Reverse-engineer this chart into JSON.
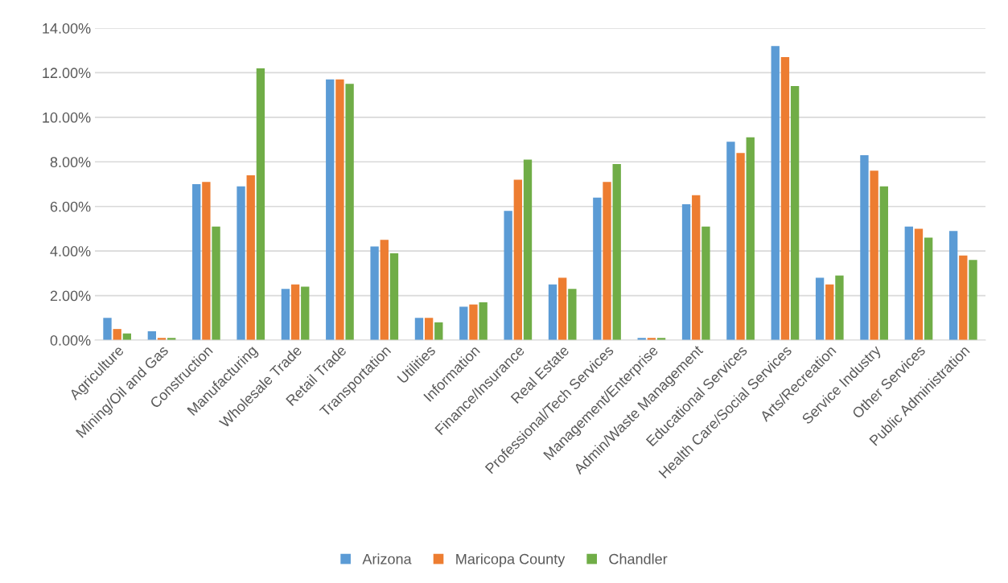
{
  "chart_data": {
    "type": "bar",
    "categories": [
      "Agriculture",
      "Mining/Oil and Gas",
      "Construction",
      "Manufacturing",
      "Wholesale Trade",
      "Retail Trade",
      "Transportation",
      "Utilities",
      "Information",
      "Finance/Insurance",
      "Real Estate",
      "Professional/Tech Services",
      "Management/Enterprise",
      "Admin/Waste Management",
      "Educational Services",
      "Health Care/Social Services",
      "Arts/Recreation",
      "Service Industry",
      "Other Services",
      "Public Administration"
    ],
    "series": [
      {
        "name": "Arizona",
        "color": "#5b9bd5",
        "values": [
          1.0,
          0.4,
          7.0,
          6.9,
          2.3,
          11.7,
          4.2,
          1.0,
          1.5,
          5.8,
          2.5,
          6.4,
          0.1,
          6.1,
          8.9,
          13.2,
          2.8,
          8.3,
          5.1,
          4.9
        ]
      },
      {
        "name": "Maricopa County",
        "color": "#ed7d31",
        "values": [
          0.5,
          0.1,
          7.1,
          7.4,
          2.5,
          11.7,
          4.5,
          1.0,
          1.6,
          7.2,
          2.8,
          7.1,
          0.1,
          6.5,
          8.4,
          12.7,
          2.5,
          7.6,
          5.0,
          3.8
        ]
      },
      {
        "name": "Chandler",
        "color": "#70ad47",
        "values": [
          0.3,
          0.1,
          5.1,
          12.2,
          2.4,
          11.5,
          3.9,
          0.8,
          1.7,
          8.1,
          2.3,
          7.9,
          0.1,
          5.1,
          9.1,
          11.4,
          2.9,
          6.9,
          4.6,
          3.6
        ]
      }
    ],
    "ylim": [
      0,
      14
    ],
    "yticks": [
      {
        "value": 0,
        "label": "0.00%"
      },
      {
        "value": 2,
        "label": "2.00%"
      },
      {
        "value": 4,
        "label": "4.00%"
      },
      {
        "value": 6,
        "label": "6.00%"
      },
      {
        "value": 8,
        "label": "8.00%"
      },
      {
        "value": 10,
        "label": "10.00%"
      },
      {
        "value": 12,
        "label": "12.00%"
      },
      {
        "value": 14,
        "label": "14.00%"
      }
    ],
    "grid": "y",
    "legend": "bottom"
  }
}
